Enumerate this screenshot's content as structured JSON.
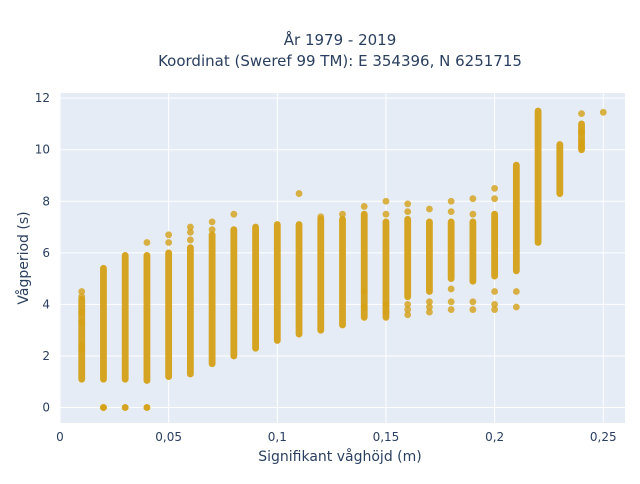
{
  "chart_data": {
    "type": "scatter",
    "title_line1": "År 1979 - 2019",
    "title_line2": "Koordinat (Sweref 99 TM): E 354396, N 6251715",
    "xlabel": "Signifikant våghöjd (m)",
    "ylabel": "Vågperiod (s)",
    "xlim": [
      0,
      0.26
    ],
    "ylim": [
      -0.6,
      12.2
    ],
    "x_ticks": [
      {
        "value": 0,
        "label": "0"
      },
      {
        "value": 0.05,
        "label": "0,05"
      },
      {
        "value": 0.1,
        "label": "0,1"
      },
      {
        "value": 0.15,
        "label": "0,15"
      },
      {
        "value": 0.2,
        "label": "0,2"
      },
      {
        "value": 0.25,
        "label": "0,25"
      }
    ],
    "y_ticks": [
      {
        "value": 0,
        "label": "0"
      },
      {
        "value": 2,
        "label": "2"
      },
      {
        "value": 4,
        "label": "4"
      },
      {
        "value": 6,
        "label": "6"
      },
      {
        "value": 8,
        "label": "8"
      },
      {
        "value": 10,
        "label": "10"
      },
      {
        "value": 12,
        "label": "12"
      }
    ],
    "grid": true,
    "marker_color": "#D4A017",
    "plot_background": "#E5ECF6",
    "columns": [
      {
        "x": 0.01,
        "y_min": 1.1,
        "y_max": 4.2,
        "outliers": [
          4.5,
          4.3,
          3.7,
          3.3,
          2.4,
          2.25
        ]
      },
      {
        "x": 0.02,
        "y_min": 1.1,
        "y_max": 5.4,
        "outliers": [
          0,
          0,
          0
        ]
      },
      {
        "x": 0.03,
        "y_min": 1.1,
        "y_max": 5.9,
        "outliers": [
          0,
          0
        ]
      },
      {
        "x": 0.04,
        "y_min": 1.05,
        "y_max": 5.9,
        "outliers": [
          6.4,
          0,
          0
        ]
      },
      {
        "x": 0.05,
        "y_min": 1.2,
        "y_max": 6.0,
        "outliers": [
          6.7,
          6.4
        ]
      },
      {
        "x": 0.06,
        "y_min": 1.3,
        "y_max": 6.2,
        "outliers": [
          7.0,
          6.8,
          6.5
        ]
      },
      {
        "x": 0.07,
        "y_min": 1.7,
        "y_max": 6.7,
        "outliers": [
          7.2,
          6.9
        ]
      },
      {
        "x": 0.08,
        "y_min": 2.0,
        "y_max": 6.9,
        "outliers": [
          7.5
        ]
      },
      {
        "x": 0.09,
        "y_min": 2.3,
        "y_max": 7.0,
        "outliers": []
      },
      {
        "x": 0.1,
        "y_min": 2.6,
        "y_max": 7.1,
        "outliers": []
      },
      {
        "x": 0.11,
        "y_min": 2.85,
        "y_max": 7.1,
        "outliers": [
          8.3
        ]
      },
      {
        "x": 0.12,
        "y_min": 3.0,
        "y_max": 7.3,
        "outliers": [
          7.4
        ]
      },
      {
        "x": 0.13,
        "y_min": 3.2,
        "y_max": 7.3,
        "outliers": [
          7.5
        ]
      },
      {
        "x": 0.14,
        "y_min": 3.5,
        "y_max": 7.5,
        "outliers": [
          7.8,
          4.5,
          3.9
        ]
      },
      {
        "x": 0.15,
        "y_min": 3.5,
        "y_max": 7.2,
        "outliers": [
          8.0,
          7.5,
          4.0,
          3.7
        ]
      },
      {
        "x": 0.16,
        "y_min": 4.3,
        "y_max": 7.3,
        "outliers": [
          7.9,
          7.6,
          4.0,
          3.8,
          3.6
        ]
      },
      {
        "x": 0.17,
        "y_min": 4.5,
        "y_max": 7.2,
        "outliers": [
          7.7,
          4.1,
          3.9,
          3.7
        ]
      },
      {
        "x": 0.18,
        "y_min": 5.0,
        "y_max": 7.2,
        "outliers": [
          8.0,
          7.6,
          4.6,
          4.1,
          3.8
        ]
      },
      {
        "x": 0.19,
        "y_min": 4.9,
        "y_max": 7.2,
        "outliers": [
          8.1,
          7.5,
          4.1,
          3.8
        ]
      },
      {
        "x": 0.2,
        "y_min": 5.1,
        "y_max": 7.5,
        "outliers": [
          8.5,
          8.1,
          4.5,
          4.0,
          3.8
        ]
      },
      {
        "x": 0.21,
        "y_min": 5.3,
        "y_max": 9.4,
        "outliers": [
          4.5,
          3.9
        ]
      },
      {
        "x": 0.22,
        "y_min": 6.4,
        "y_max": 11.5,
        "outliers": []
      },
      {
        "x": 0.23,
        "y_min": 8.3,
        "y_max": 10.2,
        "outliers": []
      },
      {
        "x": 0.24,
        "y_min": 10.0,
        "y_max": 11.0,
        "outliers": [
          11.4,
          10.7,
          10.3,
          10.1
        ]
      },
      {
        "x": 0.25,
        "y_min": 11.45,
        "y_max": 11.45,
        "outliers": []
      }
    ]
  }
}
